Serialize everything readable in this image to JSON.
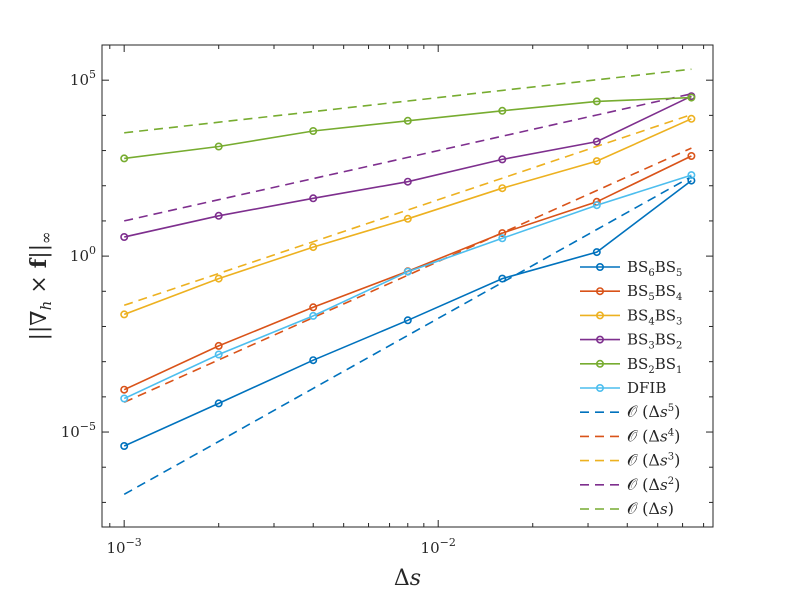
{
  "chart_data": {
    "type": "line",
    "xscale": "log",
    "yscale": "log",
    "xlim": [
      0.00085,
      0.075
    ],
    "ylim": [
      2e-08,
      1000000.0
    ],
    "xticks": [
      {
        "value": 0.001,
        "base": "10",
        "exp": "−3"
      },
      {
        "value": 0.01,
        "base": "10",
        "exp": "−2"
      }
    ],
    "yticks": [
      {
        "value": 1e-05,
        "base": "10",
        "exp": "−5"
      },
      {
        "value": 1,
        "base": "10",
        "exp": "0"
      },
      {
        "value": 100000,
        "base": "10",
        "exp": "5"
      }
    ],
    "xlabel": {
      "prefix": "Δ",
      "var": "s"
    },
    "ylabel": {
      "text": "||∇h × f||∞",
      "parts": [
        "||∇",
        "h",
        " × ",
        "f",
        "||",
        "∞"
      ]
    },
    "x": [
      0.001,
      0.002,
      0.004,
      0.008,
      0.016,
      0.032,
      0.064
    ],
    "series": [
      {
        "name": "BS6BS5",
        "base1": "BS",
        "sub1": "6",
        "base2": "BS",
        "sub2": "5",
        "style": "solid",
        "marker": "circle",
        "color": "#0072BD",
        "values": [
          4e-06,
          6.5e-05,
          0.0011,
          0.015,
          0.23,
          1.3,
          140
        ]
      },
      {
        "name": "BS5BS4",
        "base1": "BS",
        "sub1": "5",
        "base2": "BS",
        "sub2": "4",
        "style": "solid",
        "marker": "circle",
        "color": "#D95319",
        "values": [
          0.00016,
          0.0028,
          0.035,
          0.37,
          4.5,
          35,
          700
        ]
      },
      {
        "name": "BS4BS3",
        "base1": "BS",
        "sub1": "4",
        "base2": "BS",
        "sub2": "3",
        "style": "solid",
        "marker": "circle",
        "color": "#EDB120",
        "values": [
          0.022,
          0.23,
          1.8,
          11.5,
          85,
          500,
          8000
        ]
      },
      {
        "name": "BS3BS2",
        "base1": "BS",
        "sub1": "3",
        "base2": "BS",
        "sub2": "2",
        "style": "solid",
        "marker": "circle",
        "color": "#7E2F8E",
        "values": [
          3.5,
          14,
          44,
          130,
          560,
          1800,
          35000
        ]
      },
      {
        "name": "BS2BS1",
        "base1": "BS",
        "sub1": "2",
        "base2": "BS",
        "sub2": "1",
        "style": "solid",
        "marker": "circle",
        "color": "#77AC30",
        "values": [
          600,
          1300,
          3600,
          7000,
          13500,
          25000,
          32000
        ]
      },
      {
        "name": "DFIB",
        "base1": "DFIB",
        "style": "solid",
        "marker": "circle",
        "color": "#4DBEEE",
        "values": [
          9e-05,
          0.0016,
          0.02,
          0.36,
          3.2,
          28,
          200
        ]
      },
      {
        "name": "O(Δs^5)",
        "order": "5",
        "style": "dashed",
        "color": "#0072BD",
        "values": [
          1.7e-07,
          5.4e-06,
          0.000174,
          0.00557,
          0.178,
          5.7,
          182
        ]
      },
      {
        "name": "O(Δs^4)",
        "order": "4",
        "style": "dashed",
        "color": "#D95319",
        "values": [
          7e-05,
          0.00112,
          0.0179,
          0.287,
          4.59,
          73.4,
          1174
        ]
      },
      {
        "name": "O(Δs^3)",
        "order": "3",
        "style": "dashed",
        "color": "#EDB120",
        "values": [
          0.04,
          0.32,
          2.56,
          20.5,
          164,
          1311,
          10486
        ]
      },
      {
        "name": "O(Δs^2)",
        "order": "2",
        "style": "dashed",
        "color": "#7E2F8E",
        "values": [
          10,
          40,
          160,
          640,
          2560,
          10240,
          40960
        ]
      },
      {
        "name": "O(Δs)",
        "order": "",
        "style": "dashed",
        "color": "#77AC30",
        "values": [
          3200,
          6400,
          12800,
          25600,
          51200,
          102400,
          204800
        ]
      }
    ],
    "legend": {
      "position": "bottom-right"
    },
    "grid": false
  }
}
